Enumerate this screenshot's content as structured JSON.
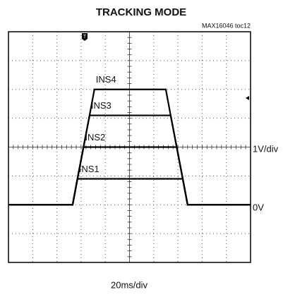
{
  "chart_data": {
    "type": "line",
    "title": "TRACKING MODE",
    "annotations": {
      "id": "MAX16046 toc12",
      "y_scale": "1V/div",
      "zero": "0V",
      "x_scale": "20ms/div"
    },
    "x": [
      0,
      53,
      57,
      62,
      67,
      71,
      130,
      134,
      139,
      144,
      148,
      200
    ],
    "series": [
      {
        "name": "INS1",
        "color": "#000000",
        "values": [
          0,
          0,
          0.9,
          0.9,
          0.9,
          0.9,
          0.9,
          0.9,
          0.9,
          0.9,
          0,
          0
        ]
      },
      {
        "name": "INS2",
        "color": "#000000",
        "values": [
          0,
          0,
          0.9,
          2,
          2,
          2,
          2,
          2,
          2,
          0.9,
          0,
          0
        ]
      },
      {
        "name": "INS3",
        "color": "#000000",
        "values": [
          0,
          0,
          0.9,
          2,
          3.1,
          3.1,
          3.1,
          3.1,
          2,
          0.9,
          0,
          0
        ]
      },
      {
        "name": "INS4",
        "color": "#000000",
        "values": [
          0,
          0,
          0.9,
          2,
          3.1,
          4,
          4,
          3.1,
          2,
          0.9,
          0,
          0
        ]
      }
    ],
    "xlim": [
      0,
      200
    ],
    "xticks": [
      0,
      20,
      40,
      60,
      80,
      100,
      120,
      140,
      160,
      180,
      200
    ],
    "ylim": [
      -2,
      6
    ],
    "yticks": [
      -2,
      -1,
      0,
      1,
      2,
      3,
      4,
      5,
      6
    ],
    "grid": true
  }
}
